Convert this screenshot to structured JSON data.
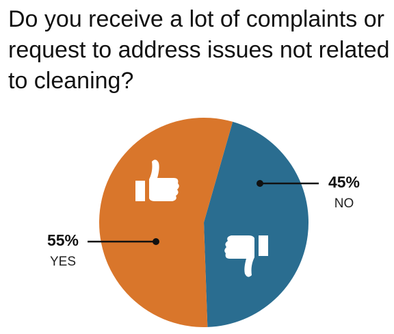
{
  "chart_data": {
    "type": "pie",
    "title": "Do you receive a lot of complaints or request to address issues not related to cleaning?",
    "categories": [
      "NO",
      "YES"
    ],
    "values": [
      45,
      55
    ],
    "value_labels": [
      "45%",
      "55%"
    ],
    "colors": [
      "#2a6d90",
      "#d9762b"
    ]
  }
}
